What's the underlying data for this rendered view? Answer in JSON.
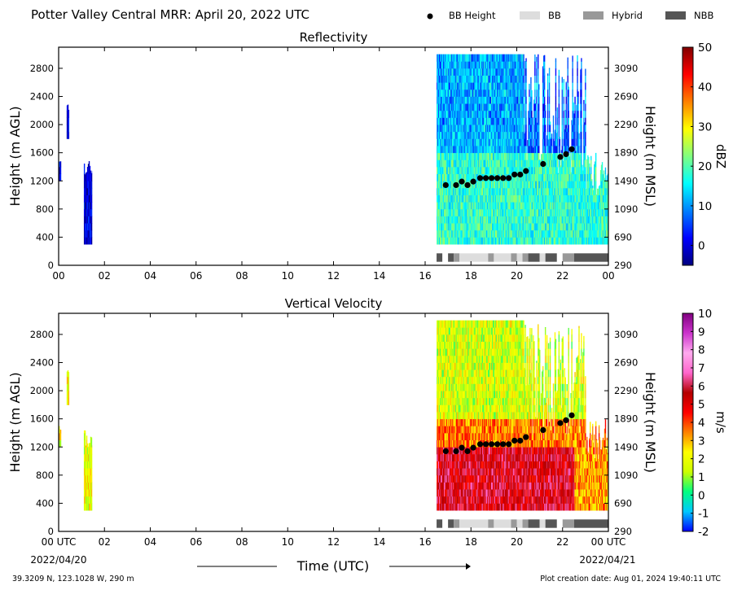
{
  "header": {
    "title": "Potter Valley Central MRR:  April 20, 2022 UTC"
  },
  "legend": {
    "items": [
      {
        "label": "BB Height",
        "marker": "dot",
        "color": "#000000"
      },
      {
        "label": "BB",
        "marker": "box",
        "color": "#dddddd"
      },
      {
        "label": "Hybrid",
        "marker": "box",
        "color": "#999999"
      },
      {
        "label": "NBB",
        "marker": "box",
        "color": "#555555"
      }
    ]
  },
  "footer": {
    "location": "39.3209 N, 123.1028 W, 290 m",
    "creation": "Plot creation date: Aug 01, 2024 19:40:11 UTC",
    "xlabel": "Time (UTC)",
    "start_date": "2022/04/20",
    "end_date": "2022/04/21"
  },
  "chart_data": [
    {
      "type": "heatmap",
      "title": "Reflectivity",
      "ylabel": "Height (m AGL)",
      "ylabel_right": "Height (m MSL)",
      "xlim": [
        0,
        24
      ],
      "ylim": [
        0,
        3100
      ],
      "xticks": [
        "00",
        "02",
        "04",
        "06",
        "08",
        "10",
        "12",
        "14",
        "16",
        "18",
        "20",
        "22",
        "00"
      ],
      "yticks": [
        0,
        400,
        800,
        1200,
        1600,
        2000,
        2400,
        2800
      ],
      "yticks_right": [
        290,
        690,
        1090,
        1490,
        1890,
        2290,
        2690,
        3090
      ],
      "colorbar": {
        "label": "dBZ",
        "range": [
          -5,
          50
        ],
        "ticks": [
          0,
          10,
          20,
          30,
          40,
          50
        ],
        "colormap": [
          "#000080",
          "#0000ff",
          "#0080ff",
          "#00ffff",
          "#80ff80",
          "#ffff00",
          "#ff8000",
          "#ff0000",
          "#800000"
        ]
      },
      "data_regions": [
        {
          "t_start": 0.0,
          "t_end": 0.1,
          "h_min": 1200,
          "h_max": 1500,
          "value_range": [
            -3,
            3
          ]
        },
        {
          "t_start": 0.35,
          "t_end": 0.45,
          "h_min": 1800,
          "h_max": 2300,
          "value_range": [
            -3,
            3
          ]
        },
        {
          "t_start": 1.1,
          "t_end": 1.45,
          "h_min": 300,
          "h_max": 1500,
          "value_range": [
            -3,
            5
          ]
        },
        {
          "t_start": 16.5,
          "t_end": 24.0,
          "h_min": 300,
          "h_max": 3000,
          "value_range": [
            0,
            25
          ]
        }
      ]
    },
    {
      "type": "heatmap",
      "title": "Vertical Velocity",
      "ylabel": "Height (m AGL)",
      "ylabel_right": "Height (m MSL)",
      "xlim": [
        0,
        24
      ],
      "ylim": [
        0,
        3100
      ],
      "xticks": [
        "00 UTC",
        "02",
        "04",
        "06",
        "08",
        "10",
        "12",
        "14",
        "16",
        "18",
        "20",
        "22",
        "00 UTC"
      ],
      "yticks": [
        0,
        400,
        800,
        1200,
        1600,
        2000,
        2400,
        2800
      ],
      "yticks_right": [
        290,
        690,
        1090,
        1490,
        1890,
        2290,
        2690,
        3090
      ],
      "colorbar": {
        "label": "m/s",
        "range": [
          -2,
          10
        ],
        "ticks": [
          -2,
          -1,
          0,
          1,
          2,
          3,
          4,
          5,
          6,
          7,
          8,
          9,
          10
        ],
        "colormap": [
          "#0000ff",
          "#00c8ff",
          "#00ff80",
          "#ccff00",
          "#ffff00",
          "#ff8000",
          "#ff0000",
          "#b40000",
          "#ff66cc",
          "#ffaaee",
          "#cc33cc",
          "#800080"
        ]
      },
      "data_regions": [
        {
          "t_start": 0.0,
          "t_end": 0.1,
          "h_min": 1200,
          "h_max": 1500,
          "value_range": [
            1,
            2
          ]
        },
        {
          "t_start": 0.35,
          "t_end": 0.45,
          "h_min": 1800,
          "h_max": 2300,
          "value_range": [
            1,
            2
          ]
        },
        {
          "t_start": 1.1,
          "t_end": 1.45,
          "h_min": 300,
          "h_max": 1500,
          "value_range": [
            1.5,
            3
          ]
        },
        {
          "t_start": 16.5,
          "t_end": 24.0,
          "h_min": 300,
          "h_max": 3000,
          "value_range": [
            1,
            7
          ]
        }
      ]
    }
  ],
  "bb_height": {
    "t": [
      16.9,
      17.35,
      17.6,
      17.85,
      18.1,
      18.4,
      18.65,
      18.9,
      19.15,
      19.4,
      19.65,
      19.9,
      20.15,
      20.4,
      21.15,
      21.9,
      22.15,
      22.4
    ],
    "h": [
      1140,
      1140,
      1190,
      1140,
      1190,
      1240,
      1240,
      1240,
      1240,
      1240,
      1240,
      1290,
      1290,
      1340,
      1440,
      1540,
      1580,
      1650
    ]
  },
  "bb_classification": [
    {
      "start": 16.5,
      "end": 16.75,
      "class": "NBB"
    },
    {
      "start": 16.75,
      "end": 17.0,
      "class": "none"
    },
    {
      "start": 17.0,
      "end": 17.25,
      "class": "NBB"
    },
    {
      "start": 17.25,
      "end": 17.5,
      "class": "Hybrid"
    },
    {
      "start": 17.5,
      "end": 18.75,
      "class": "BB"
    },
    {
      "start": 18.75,
      "end": 19.0,
      "class": "Hybrid"
    },
    {
      "start": 19.0,
      "end": 19.75,
      "class": "BB"
    },
    {
      "start": 19.75,
      "end": 20.0,
      "class": "Hybrid"
    },
    {
      "start": 20.0,
      "end": 20.25,
      "class": "BB"
    },
    {
      "start": 20.25,
      "end": 20.5,
      "class": "Hybrid"
    },
    {
      "start": 20.5,
      "end": 21.0,
      "class": "NBB"
    },
    {
      "start": 21.0,
      "end": 21.25,
      "class": "BB"
    },
    {
      "start": 21.25,
      "end": 21.75,
      "class": "NBB"
    },
    {
      "start": 21.75,
      "end": 22.0,
      "class": "none"
    },
    {
      "start": 22.0,
      "end": 22.5,
      "class": "Hybrid"
    },
    {
      "start": 22.5,
      "end": 24.0,
      "class": "NBB"
    }
  ]
}
